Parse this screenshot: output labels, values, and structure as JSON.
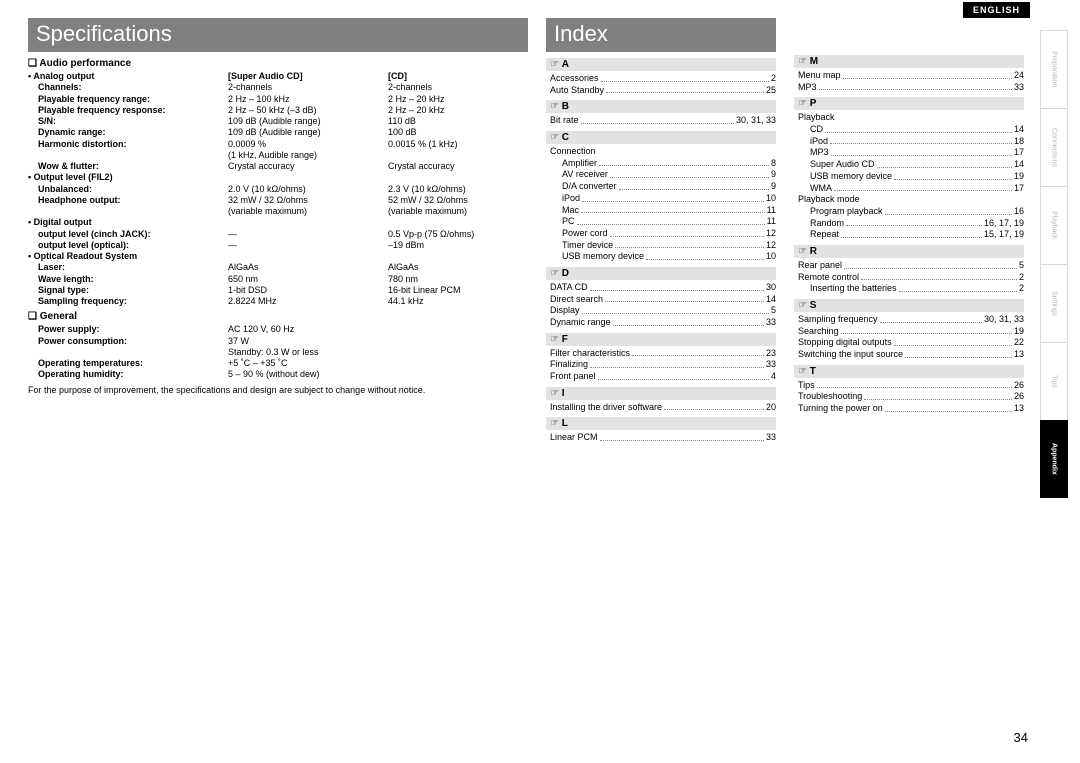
{
  "lang": "ENGLISH",
  "page_number": "34",
  "titles": {
    "spec": "Specifications",
    "index": "Index"
  },
  "spec": {
    "audio_head": "Audio performance",
    "col_sacd": "[Super Audio CD]",
    "col_cd": "[CD]",
    "general_head": "General",
    "analog_output": "Analog output",
    "output_level": "Output level (FIL2)",
    "digital_output": "Digital output",
    "optical_readout": "Optical Readout System",
    "rows_audio": [
      {
        "lab": "Channels:",
        "c1": "2-channels",
        "c2": "2-channels"
      },
      {
        "lab": "Playable frequency range:",
        "c1": "2 Hz – 100 kHz",
        "c2": "2 Hz – 20 kHz"
      },
      {
        "lab": "Playable frequency response:",
        "c1": "2 Hz – 50 kHz (–3 dB)",
        "c2": "2 Hz – 20 kHz"
      },
      {
        "lab": "S/N:",
        "c1": "109 dB (Audible range)",
        "c2": "110 dB"
      },
      {
        "lab": "Dynamic range:",
        "c1": "109 dB (Audible range)",
        "c2": "100 dB"
      },
      {
        "lab": "Harmonic distortion:",
        "c1": "0.0009 %",
        "c2": "0.0015 % (1 kHz)"
      },
      {
        "lab": "",
        "c1": "(1 kHz, Audible range)",
        "c2": ""
      },
      {
        "lab": "Wow & flutter:",
        "c1": "Crystal accuracy",
        "c2": "Crystal accuracy"
      }
    ],
    "rows_output": [
      {
        "lab": "Unbalanced:",
        "c1": "2.0 V (10 kΩ/ohms)",
        "c2": "2.3 V (10 kΩ/ohms)"
      },
      {
        "lab": "Headphone output:",
        "c1": "32 mW / 32 Ω/ohms",
        "c2": "52 mW / 32 Ω/ohms"
      },
      {
        "lab": "",
        "c1": "(variable maximum)",
        "c2": "(variable maximum)"
      }
    ],
    "rows_digital": [
      {
        "lab": "output level (cinch JACK):",
        "c1": "—",
        "c2": "0.5 Vp-p (75 Ω/ohms)"
      },
      {
        "lab": "output level (optical):",
        "c1": "—",
        "c2": "–19 dBm"
      }
    ],
    "rows_optical": [
      {
        "lab": "Laser:",
        "c1": "AlGaAs",
        "c2": "AlGaAs"
      },
      {
        "lab": "Wave length:",
        "c1": "650 nm",
        "c2": "780 nm"
      },
      {
        "lab": "Signal type:",
        "c1": "1-bit DSD",
        "c2": "16-bit Linear PCM"
      },
      {
        "lab": "Sampling frequency:",
        "c1": "2.8224 MHz",
        "c2": "44.1 kHz"
      }
    ],
    "rows_general": [
      {
        "lab": "Power supply:",
        "c1": "AC 120 V, 60 Hz",
        "c2": ""
      },
      {
        "lab": "Power consumption:",
        "c1": "37 W",
        "c2": ""
      },
      {
        "lab": "",
        "c1": "Standby: 0.3 W or less",
        "c2": ""
      },
      {
        "lab": "Operating temperatures:",
        "c1": "+5 ˚C – +35 ˚C",
        "c2": ""
      },
      {
        "lab": "Operating humidity:",
        "c1": "5 – 90 % (without dew)",
        "c2": ""
      }
    ],
    "note": "For the purpose of improvement, the specifications and design are subject to change without notice."
  },
  "index_mid": [
    {
      "letter": "A",
      "items": [
        {
          "t": "Accessories",
          "p": "2"
        },
        {
          "t": "Auto Standby",
          "p": "25"
        }
      ]
    },
    {
      "letter": "B",
      "items": [
        {
          "t": "Bit rate",
          "p": "30, 31, 33"
        }
      ]
    },
    {
      "letter": "C",
      "items": [
        {
          "t": "Connection",
          "p": ""
        },
        {
          "t": "Amplifier",
          "p": "8",
          "indent": true
        },
        {
          "t": "AV receiver",
          "p": "9",
          "indent": true
        },
        {
          "t": "D/A converter",
          "p": "9",
          "indent": true
        },
        {
          "t": "iPod",
          "p": "10",
          "indent": true
        },
        {
          "t": "Mac",
          "p": "11",
          "indent": true
        },
        {
          "t": "PC",
          "p": "11",
          "indent": true
        },
        {
          "t": "Power cord",
          "p": "12",
          "indent": true
        },
        {
          "t": "Timer device",
          "p": "12",
          "indent": true
        },
        {
          "t": "USB memory device",
          "p": "10",
          "indent": true
        }
      ]
    },
    {
      "letter": "D",
      "items": [
        {
          "t": "DATA CD",
          "p": "30"
        },
        {
          "t": "Direct search",
          "p": "14"
        },
        {
          "t": "Display",
          "p": "5"
        },
        {
          "t": "Dynamic range",
          "p": "33"
        }
      ]
    },
    {
      "letter": "F",
      "items": [
        {
          "t": "Filter characteristics",
          "p": "23"
        },
        {
          "t": "Finalizing",
          "p": "33"
        },
        {
          "t": "Front panel",
          "p": "4"
        }
      ]
    },
    {
      "letter": "I",
      "items": [
        {
          "t": "Installing the driver software",
          "p": "20"
        }
      ]
    },
    {
      "letter": "L",
      "items": [
        {
          "t": "Linear PCM",
          "p": "33"
        }
      ]
    }
  ],
  "index_right": [
    {
      "letter": "M",
      "items": [
        {
          "t": "Menu map",
          "p": "24"
        },
        {
          "t": "MP3",
          "p": "33"
        }
      ]
    },
    {
      "letter": "P",
      "items": [
        {
          "t": "Playback",
          "p": ""
        },
        {
          "t": "CD",
          "p": "14",
          "indent": true
        },
        {
          "t": "iPod",
          "p": "18",
          "indent": true
        },
        {
          "t": "MP3",
          "p": "17",
          "indent": true
        },
        {
          "t": "Super Audio CD",
          "p": "14",
          "indent": true
        },
        {
          "t": "USB memory device",
          "p": "19",
          "indent": true
        },
        {
          "t": "WMA",
          "p": "17",
          "indent": true
        },
        {
          "t": "Playback mode",
          "p": ""
        },
        {
          "t": "Program playback",
          "p": "16",
          "indent": true
        },
        {
          "t": "Random",
          "p": "16, 17, 19",
          "indent": true
        },
        {
          "t": "Repeat",
          "p": "15, 17, 19",
          "indent": true
        }
      ]
    },
    {
      "letter": "R",
      "items": [
        {
          "t": "Rear panel",
          "p": "5"
        },
        {
          "t": "Remote control",
          "p": "2"
        },
        {
          "t": "Inserting the batteries",
          "p": "2",
          "indent": true
        }
      ]
    },
    {
      "letter": "S",
      "items": [
        {
          "t": "Sampling frequency",
          "p": "30, 31, 33"
        },
        {
          "t": "Searching",
          "p": "19"
        },
        {
          "t": "Stopping digital outputs",
          "p": "22"
        },
        {
          "t": "Switching the input source",
          "p": "13"
        }
      ]
    },
    {
      "letter": "T",
      "items": [
        {
          "t": "Tips",
          "p": "26"
        },
        {
          "t": "Troubleshooting",
          "p": "26"
        },
        {
          "t": "Turning the power on",
          "p": "13"
        }
      ]
    }
  ],
  "tabs": [
    "Preparation",
    "Connections",
    "Playback",
    "Settings",
    "Tips",
    "Appendix"
  ],
  "active_tab": 5
}
